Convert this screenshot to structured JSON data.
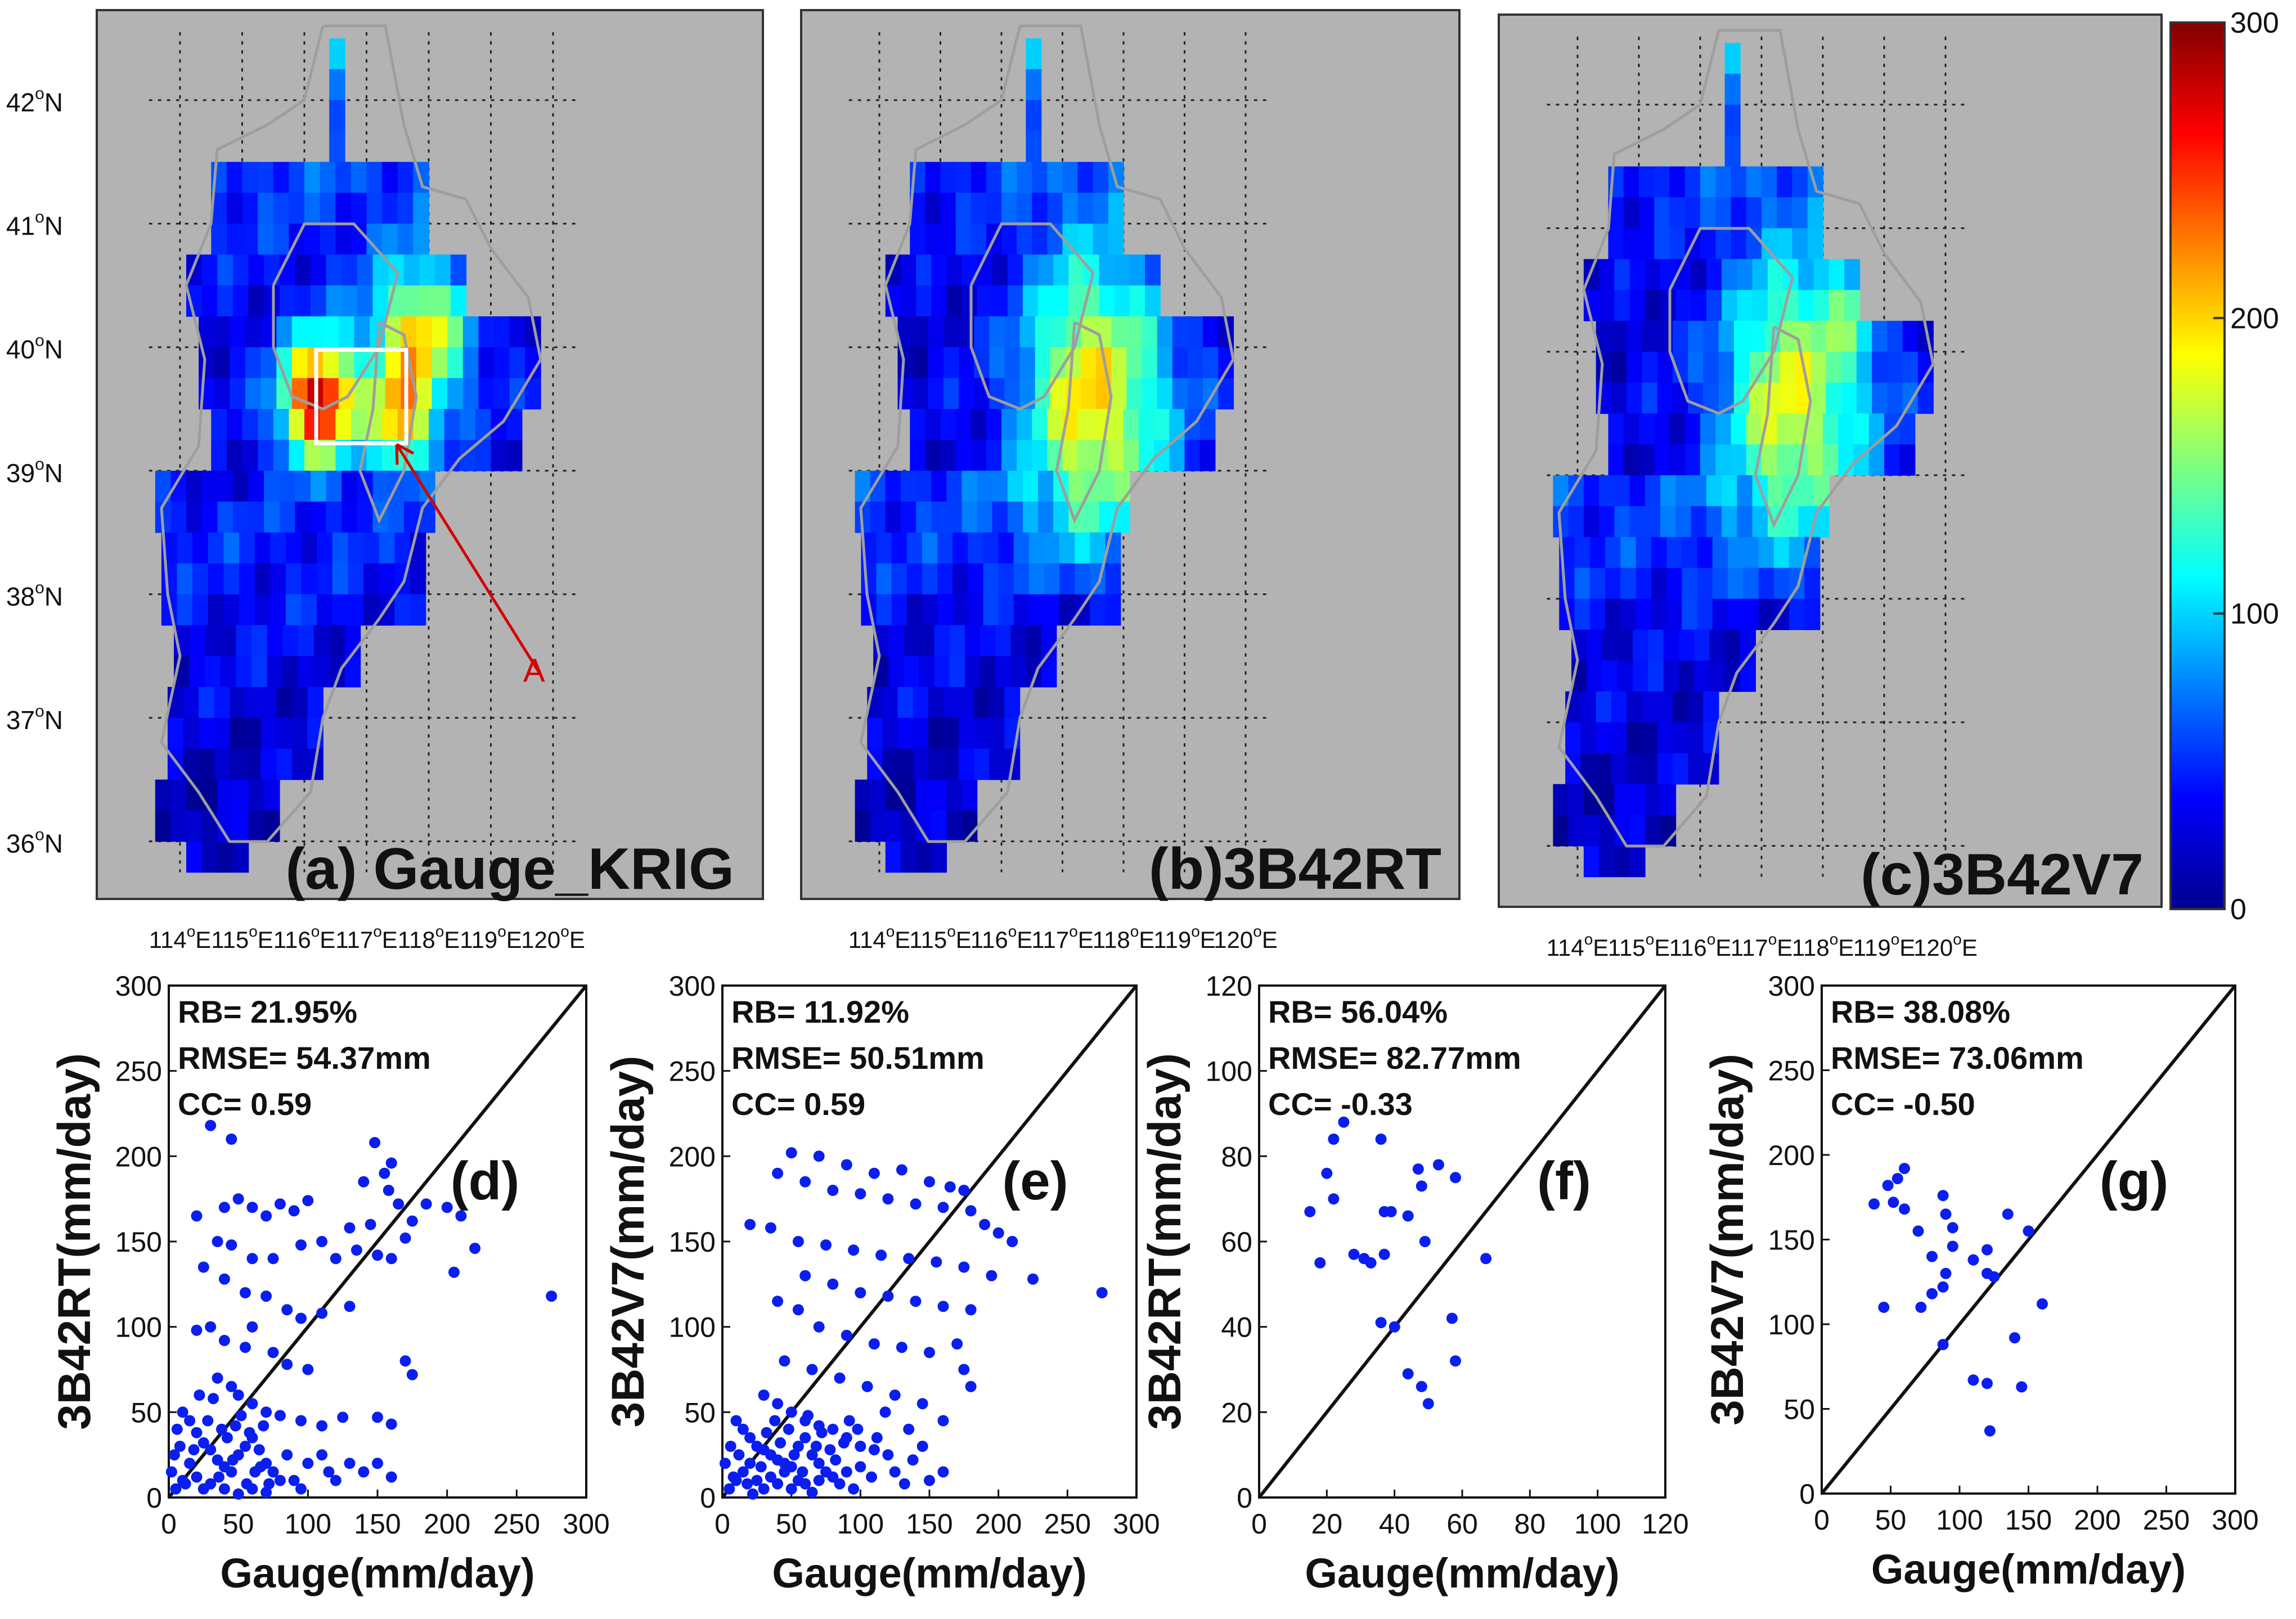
{
  "maps": {
    "lon_ticks": [
      "114",
      "115",
      "116",
      "117",
      "118",
      "119",
      "120"
    ],
    "lat_ticks": [
      "42",
      "41",
      "40",
      "39",
      "38",
      "37",
      "36"
    ],
    "lon_unit": "E",
    "lat_unit": "N",
    "degree_symbol": "o",
    "panels": [
      {
        "id": "a",
        "title": "(a) Gauge_KRIG"
      },
      {
        "id": "b",
        "title": "(b)3B42RT"
      },
      {
        "id": "c",
        "title": "(c)3B42V7"
      }
    ],
    "annotation_label": "A",
    "colorbar": {
      "ticks": [
        "300",
        "200",
        "100",
        "0"
      ],
      "min": 0,
      "max": 300
    }
  },
  "chart_data": [
    {
      "id": "d",
      "type": "scatter",
      "panel_label": "(d)",
      "xlabel": "Gauge(mm/day)",
      "ylabel": "3B42RT(mm/day)",
      "xlim": [
        0,
        300
      ],
      "ylim": [
        0,
        300
      ],
      "xticks": [
        "0",
        "50",
        "100",
        "150",
        "200",
        "250",
        "300"
      ],
      "yticks": [
        "0",
        "50",
        "100",
        "150",
        "200",
        "250",
        "300"
      ],
      "stats": [
        "RB= 21.95%",
        "RMSE= 54.37mm",
        "CC= 0.59"
      ],
      "points": [
        [
          30,
          218
        ],
        [
          45,
          210
        ],
        [
          148,
          208
        ],
        [
          160,
          196
        ],
        [
          155,
          190
        ],
        [
          140,
          185
        ],
        [
          158,
          180
        ],
        [
          165,
          172
        ],
        [
          185,
          172
        ],
        [
          200,
          170
        ],
        [
          210,
          165
        ],
        [
          175,
          162
        ],
        [
          145,
          160
        ],
        [
          130,
          158
        ],
        [
          100,
          174
        ],
        [
          90,
          168
        ],
        [
          80,
          172
        ],
        [
          70,
          165
        ],
        [
          60,
          170
        ],
        [
          50,
          175
        ],
        [
          40,
          170
        ],
        [
          20,
          165
        ],
        [
          35,
          150
        ],
        [
          45,
          148
        ],
        [
          60,
          140
        ],
        [
          75,
          140
        ],
        [
          95,
          148
        ],
        [
          110,
          150
        ],
        [
          120,
          140
        ],
        [
          135,
          145
        ],
        [
          150,
          142
        ],
        [
          160,
          140
        ],
        [
          170,
          152
        ],
        [
          205,
          132
        ],
        [
          220,
          146
        ],
        [
          275,
          118
        ],
        [
          25,
          135
        ],
        [
          40,
          128
        ],
        [
          55,
          120
        ],
        [
          70,
          118
        ],
        [
          85,
          110
        ],
        [
          95,
          105
        ],
        [
          110,
          108
        ],
        [
          130,
          112
        ],
        [
          60,
          100
        ],
        [
          30,
          100
        ],
        [
          20,
          98
        ],
        [
          40,
          92
        ],
        [
          55,
          88
        ],
        [
          75,
          85
        ],
        [
          85,
          78
        ],
        [
          100,
          75
        ],
        [
          170,
          80
        ],
        [
          175,
          72
        ],
        [
          35,
          70
        ],
        [
          45,
          65
        ],
        [
          50,
          60
        ],
        [
          60,
          55
        ],
        [
          70,
          50
        ],
        [
          80,
          48
        ],
        [
          95,
          45
        ],
        [
          110,
          42
        ],
        [
          125,
          47
        ],
        [
          150,
          47
        ],
        [
          160,
          43
        ],
        [
          10,
          50
        ],
        [
          15,
          45
        ],
        [
          20,
          38
        ],
        [
          25,
          32
        ],
        [
          30,
          28
        ],
        [
          35,
          22
        ],
        [
          40,
          18
        ],
        [
          45,
          15
        ],
        [
          50,
          25
        ],
        [
          55,
          30
        ],
        [
          60,
          35
        ],
        [
          65,
          28
        ],
        [
          70,
          20
        ],
        [
          75,
          15
        ],
        [
          80,
          10
        ],
        [
          5,
          5
        ],
        [
          10,
          10
        ],
        [
          15,
          20
        ],
        [
          8,
          30
        ],
        [
          12,
          8
        ],
        [
          20,
          12
        ],
        [
          25,
          5
        ],
        [
          30,
          8
        ],
        [
          40,
          5
        ],
        [
          50,
          2
        ],
        [
          60,
          5
        ],
        [
          70,
          3
        ],
        [
          90,
          10
        ],
        [
          100,
          20
        ],
        [
          110,
          25
        ],
        [
          120,
          10
        ],
        [
          140,
          15
        ],
        [
          150,
          20
        ],
        [
          160,
          12
        ],
        [
          130,
          20
        ],
        [
          115,
          15
        ],
        [
          85,
          25
        ],
        [
          95,
          5
        ],
        [
          2,
          15
        ],
        [
          4,
          25
        ],
        [
          6,
          40
        ],
        [
          18,
          28
        ],
        [
          28,
          45
        ],
        [
          38,
          40
        ],
        [
          48,
          42
        ],
        [
          58,
          38
        ],
        [
          68,
          42
        ],
        [
          22,
          60
        ],
        [
          32,
          58
        ],
        [
          52,
          48
        ],
        [
          42,
          35
        ],
        [
          62,
          15
        ],
        [
          72,
          8
        ],
        [
          36,
          12
        ],
        [
          46,
          22
        ],
        [
          56,
          8
        ],
        [
          66,
          18
        ]
      ]
    },
    {
      "id": "e",
      "type": "scatter",
      "panel_label": "(e)",
      "xlabel": "Gauge(mm/day)",
      "ylabel": "3B42V7(mm/day)",
      "xlim": [
        0,
        300
      ],
      "ylim": [
        0,
        300
      ],
      "xticks": [
        "0",
        "50",
        "100",
        "150",
        "200",
        "250",
        "300"
      ],
      "yticks": [
        "0",
        "50",
        "100",
        "150",
        "200",
        "250",
        "300"
      ],
      "stats": [
        "RB= 11.92%",
        "RMSE= 50.51mm",
        "CC= 0.59"
      ],
      "points": [
        [
          50,
          202
        ],
        [
          70,
          200
        ],
        [
          90,
          195
        ],
        [
          110,
          190
        ],
        [
          130,
          192
        ],
        [
          150,
          185
        ],
        [
          165,
          182
        ],
        [
          175,
          180
        ],
        [
          40,
          190
        ],
        [
          60,
          185
        ],
        [
          80,
          180
        ],
        [
          100,
          178
        ],
        [
          120,
          175
        ],
        [
          140,
          172
        ],
        [
          160,
          170
        ],
        [
          180,
          168
        ],
        [
          190,
          160
        ],
        [
          200,
          155
        ],
        [
          210,
          150
        ],
        [
          225,
          128
        ],
        [
          275,
          120
        ],
        [
          20,
          160
        ],
        [
          35,
          158
        ],
        [
          55,
          150
        ],
        [
          75,
          148
        ],
        [
          95,
          145
        ],
        [
          115,
          142
        ],
        [
          135,
          140
        ],
        [
          155,
          138
        ],
        [
          175,
          135
        ],
        [
          195,
          130
        ],
        [
          60,
          130
        ],
        [
          80,
          125
        ],
        [
          100,
          120
        ],
        [
          120,
          118
        ],
        [
          140,
          115
        ],
        [
          160,
          112
        ],
        [
          180,
          110
        ],
        [
          170,
          90
        ],
        [
          175,
          75
        ],
        [
          180,
          65
        ],
        [
          40,
          115
        ],
        [
          55,
          110
        ],
        [
          70,
          100
        ],
        [
          90,
          95
        ],
        [
          110,
          90
        ],
        [
          130,
          88
        ],
        [
          150,
          85
        ],
        [
          45,
          80
        ],
        [
          65,
          75
        ],
        [
          85,
          70
        ],
        [
          105,
          65
        ],
        [
          125,
          60
        ],
        [
          145,
          55
        ],
        [
          160,
          45
        ],
        [
          30,
          60
        ],
        [
          40,
          55
        ],
        [
          50,
          50
        ],
        [
          60,
          45
        ],
        [
          70,
          42
        ],
        [
          80,
          40
        ],
        [
          90,
          35
        ],
        [
          100,
          30
        ],
        [
          110,
          28
        ],
        [
          120,
          25
        ],
        [
          135,
          40
        ],
        [
          10,
          45
        ],
        [
          15,
          40
        ],
        [
          20,
          35
        ],
        [
          25,
          30
        ],
        [
          30,
          28
        ],
        [
          35,
          25
        ],
        [
          40,
          22
        ],
        [
          45,
          20
        ],
        [
          50,
          18
        ],
        [
          55,
          30
        ],
        [
          60,
          35
        ],
        [
          65,
          25
        ],
        [
          70,
          20
        ],
        [
          75,
          15
        ],
        [
          5,
          5
        ],
        [
          10,
          10
        ],
        [
          15,
          15
        ],
        [
          20,
          20
        ],
        [
          25,
          10
        ],
        [
          30,
          5
        ],
        [
          35,
          12
        ],
        [
          40,
          8
        ],
        [
          45,
          15
        ],
        [
          50,
          5
        ],
        [
          55,
          10
        ],
        [
          60,
          8
        ],
        [
          65,
          3
        ],
        [
          70,
          10
        ],
        [
          80,
          12
        ],
        [
          90,
          15
        ],
        [
          100,
          18
        ],
        [
          85,
          8
        ],
        [
          95,
          5
        ],
        [
          2,
          20
        ],
        [
          6,
          30
        ],
        [
          8,
          12
        ],
        [
          12,
          25
        ],
        [
          18,
          8
        ],
        [
          22,
          2
        ],
        [
          28,
          18
        ],
        [
          32,
          38
        ],
        [
          38,
          45
        ],
        [
          42,
          32
        ],
        [
          48,
          40
        ],
        [
          52,
          25
        ],
        [
          58,
          15
        ],
        [
          62,
          48
        ],
        [
          68,
          30
        ],
        [
          72,
          38
        ],
        [
          78,
          28
        ],
        [
          82,
          22
        ],
        [
          88,
          32
        ],
        [
          92,
          45
        ],
        [
          98,
          40
        ],
        [
          108,
          12
        ],
        [
          112,
          35
        ],
        [
          118,
          50
        ],
        [
          125,
          15
        ],
        [
          132,
          8
        ],
        [
          138,
          22
        ],
        [
          145,
          30
        ],
        [
          150,
          10
        ],
        [
          160,
          15
        ]
      ]
    },
    {
      "id": "f",
      "type": "scatter",
      "panel_label": "(f)",
      "xlabel": "Gauge(mm/day)",
      "ylabel": "3B42RT(mm/day)",
      "xlim": [
        0,
        120
      ],
      "ylim": [
        0,
        120
      ],
      "xticks": [
        "0",
        "20",
        "40",
        "60",
        "80",
        "100",
        "120"
      ],
      "yticks": [
        "0",
        "20",
        "40",
        "60",
        "80",
        "100",
        "120"
      ],
      "stats": [
        "RB= 56.04%",
        "RMSE= 82.77mm",
        "CC= -0.33"
      ],
      "points": [
        [
          25,
          88
        ],
        [
          22,
          84
        ],
        [
          36,
          84
        ],
        [
          20,
          76
        ],
        [
          47,
          77
        ],
        [
          53,
          78
        ],
        [
          58,
          75
        ],
        [
          48,
          73
        ],
        [
          15,
          67
        ],
        [
          22,
          70
        ],
        [
          37,
          67
        ],
        [
          39,
          67
        ],
        [
          44,
          66
        ],
        [
          18,
          55
        ],
        [
          28,
          57
        ],
        [
          31,
          56
        ],
        [
          33,
          55
        ],
        [
          37,
          57
        ],
        [
          49,
          60
        ],
        [
          67,
          56
        ],
        [
          36,
          41
        ],
        [
          40,
          40
        ],
        [
          57,
          42
        ],
        [
          58,
          32
        ],
        [
          44,
          29
        ],
        [
          48,
          26
        ],
        [
          50,
          22
        ]
      ]
    },
    {
      "id": "g",
      "type": "scatter",
      "panel_label": "(g)",
      "xlabel": "Gauge(mm/day)",
      "ylabel": "3B42V7(mm/day)",
      "xlim": [
        0,
        300
      ],
      "ylim": [
        0,
        300
      ],
      "xticks": [
        "0",
        "50",
        "100",
        "150",
        "200",
        "250",
        "300"
      ],
      "yticks": [
        "0",
        "50",
        "100",
        "150",
        "200",
        "250",
        "300"
      ],
      "stats": [
        "RB= 38.08%",
        "RMSE= 73.06mm",
        "CC= -0.50"
      ],
      "points": [
        [
          60,
          192
        ],
        [
          55,
          186
        ],
        [
          48,
          182
        ],
        [
          88,
          176
        ],
        [
          52,
          172
        ],
        [
          38,
          171
        ],
        [
          60,
          168
        ],
        [
          90,
          165
        ],
        [
          135,
          165
        ],
        [
          95,
          157
        ],
        [
          70,
          155
        ],
        [
          150,
          155
        ],
        [
          120,
          144
        ],
        [
          95,
          146
        ],
        [
          80,
          140
        ],
        [
          110,
          138
        ],
        [
          90,
          130
        ],
        [
          120,
          130
        ],
        [
          125,
          128
        ],
        [
          88,
          122
        ],
        [
          80,
          118
        ],
        [
          45,
          110
        ],
        [
          72,
          110
        ],
        [
          160,
          112
        ],
        [
          140,
          92
        ],
        [
          88,
          88
        ],
        [
          110,
          67
        ],
        [
          120,
          65
        ],
        [
          145,
          63
        ],
        [
          122,
          37
        ]
      ]
    }
  ]
}
